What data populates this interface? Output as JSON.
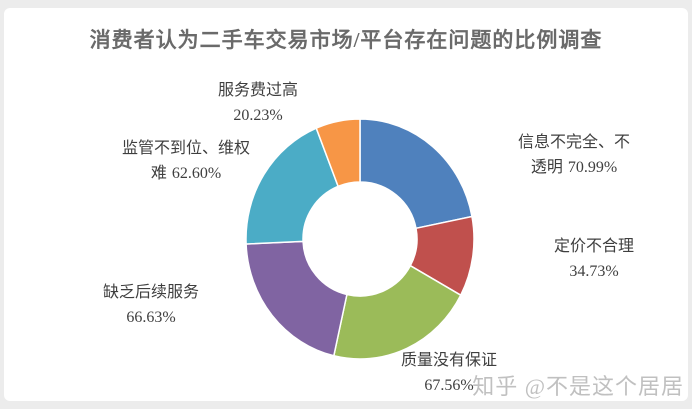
{
  "page": {
    "title": "消费者认为二手车交易市场/平台存在问题的比例调查",
    "watermark": "知乎 @不是这个居居"
  },
  "chart_data": {
    "type": "pie",
    "variant": "donut",
    "title": "消费者认为二手车交易市场/平台存在问题的比例调查",
    "start_angle_deg": 0,
    "direction": "clockwise",
    "legend": "none",
    "categories": [
      "信息不完全、不透明",
      "定价不合理",
      "质量没有保证",
      "缺乏后续服务",
      "监管不到位、维权难",
      "服务费过高"
    ],
    "values": [
      70.99,
      34.73,
      67.56,
      66.63,
      62.6,
      20.23
    ],
    "labels": [
      "70.99%",
      "34.73%",
      "67.56%",
      "66.63%",
      "62.60%",
      "20.23%"
    ],
    "colors": [
      "#4F81BD",
      "#C0504D",
      "#9BBB59",
      "#8064A2",
      "#4BACC6",
      "#F79646"
    ]
  }
}
